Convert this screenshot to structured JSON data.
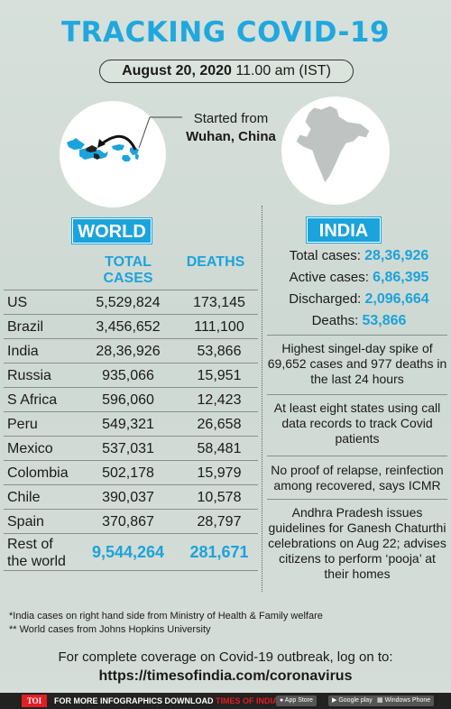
{
  "header": {
    "title": "TRACKING COVID-19",
    "date": "August 20, 2020",
    "time": "11.00 am (IST)"
  },
  "origin": {
    "line1": "Started from",
    "line2": "Wuhan, China"
  },
  "world": {
    "tag": "WORLD",
    "col_total_1": "TOTAL",
    "col_total_2": "CASES",
    "col_deaths": "DEATHS",
    "rows": [
      {
        "country": "US",
        "cases": "5,529,824",
        "deaths": "173,145"
      },
      {
        "country": "Brazil",
        "cases": "3,456,652",
        "deaths": "111,100"
      },
      {
        "country": "India",
        "cases": "28,36,926",
        "deaths": "53,866"
      },
      {
        "country": "Russia",
        "cases": "935,066",
        "deaths": "15,951"
      },
      {
        "country": "S Africa",
        "cases": "596,060",
        "deaths": "12,423"
      },
      {
        "country": "Peru",
        "cases": "549,321",
        "deaths": "26,658"
      },
      {
        "country": "Mexico",
        "cases": "537,031",
        "deaths": "58,481"
      },
      {
        "country": "Colombia",
        "cases": "502,178",
        "deaths": "15,979"
      },
      {
        "country": "Chile",
        "cases": "390,037",
        "deaths": "10,578"
      },
      {
        "country": "Spain",
        "cases": "370,867",
        "deaths": "28,797"
      }
    ],
    "rest": {
      "label_1": "Rest of",
      "label_2": "the world",
      "cases": "9,544,264",
      "deaths": "281,671"
    }
  },
  "india": {
    "tag": "INDIA",
    "stats": [
      {
        "label": "Total cases: ",
        "value": "28,36,926"
      },
      {
        "label": "Active cases: ",
        "value": "6,86,395"
      },
      {
        "label": "Discharged: ",
        "value": "2,096,664"
      },
      {
        "label": "Deaths: ",
        "value": "53,866"
      }
    ],
    "news": [
      "Highest singel-day spike of 69,652 cases and 977 deaths in the last 24 hours",
      "At least eight states using call data records to track Covid patients",
      "No proof of relapse, reinfection among recovered, says ICMR",
      "Andhra Pradesh issues guidelines for Ganesh Chaturthi celebrations on Aug 22; advises citizens to perform ‘pooja’ at their homes"
    ]
  },
  "footnotes": {
    "note1": "*India cases on right hand side from Ministry of Health & Family welfare",
    "note2": "** World cases from Johns Hopkins University"
  },
  "coverage": {
    "text": "For complete coverage on Covid-19 outbreak, log on to:",
    "url": "https://timesofindia.com/coronavirus"
  },
  "footer_bar": {
    "logo": "TOI",
    "promo_1": "FOR MORE  INFOGRAPHICS DOWNLOAD ",
    "promo_2": "TIMES OF INDIA  APP",
    "app_store": "App Store",
    "google_play": "Google play",
    "windows": "Windows Phone"
  },
  "colors": {
    "accent": "#1ba3dc",
    "title": "#1fa8de",
    "bar": "#222222",
    "logo": "#e31e24"
  }
}
